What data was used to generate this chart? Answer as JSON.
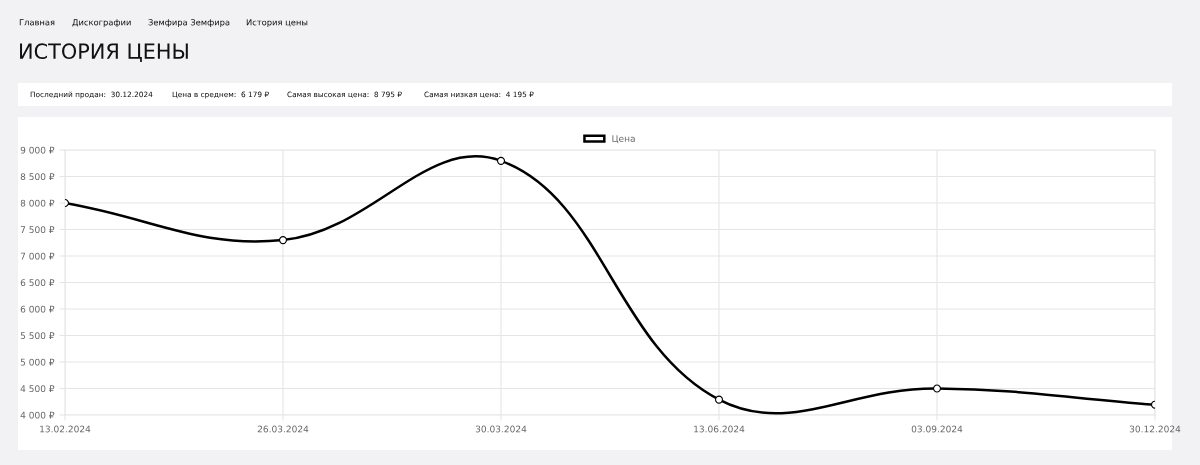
{
  "chart_data": {
    "type": "line",
    "title": "ИСТОРИЯ ЦЕНЫ",
    "annotations": [
      "Главная",
      "Дискографии",
      "Земфира Земфира",
      "История цены",
      "Последний продан:  30.12.2024",
      "Цена в среднем:  6 179 ₽",
      "Самая высокая цена:  8 795 ₽",
      "Самая низкая цена:  4 195 ₽"
    ],
    "categories": [
      "13.02.2024",
      "26.03.2024",
      "30.03.2024",
      "13.06.2024",
      "03.09.2024",
      "30.12.2024"
    ],
    "series": [
      {
        "name": "Цена",
        "color": "#000000",
        "values": [
          8000,
          7300,
          8795,
          4290,
          4500,
          4195
        ]
      }
    ],
    "ylim": [
      4000,
      9000
    ],
    "yticks": [
      {
        "value": 4000,
        "label": "4 000 ₽"
      },
      {
        "value": 4500,
        "label": "4 500 ₽"
      },
      {
        "value": 5000,
        "label": "5 000 ₽"
      },
      {
        "value": 5500,
        "label": "5 500 ₽"
      },
      {
        "value": 6000,
        "label": "6 000 ₽"
      },
      {
        "value": 6500,
        "label": "6 500 ₽"
      },
      {
        "value": 7000,
        "label": "7 000 ₽"
      },
      {
        "value": 7500,
        "label": "7 500 ₽"
      },
      {
        "value": 8000,
        "label": "8 000 ₽"
      },
      {
        "value": 8500,
        "label": "8 500 ₽"
      },
      {
        "value": 9000,
        "label": "9 000 ₽"
      }
    ],
    "grid": true,
    "legend": "top",
    "marker": "circle",
    "line_style": "solid"
  }
}
